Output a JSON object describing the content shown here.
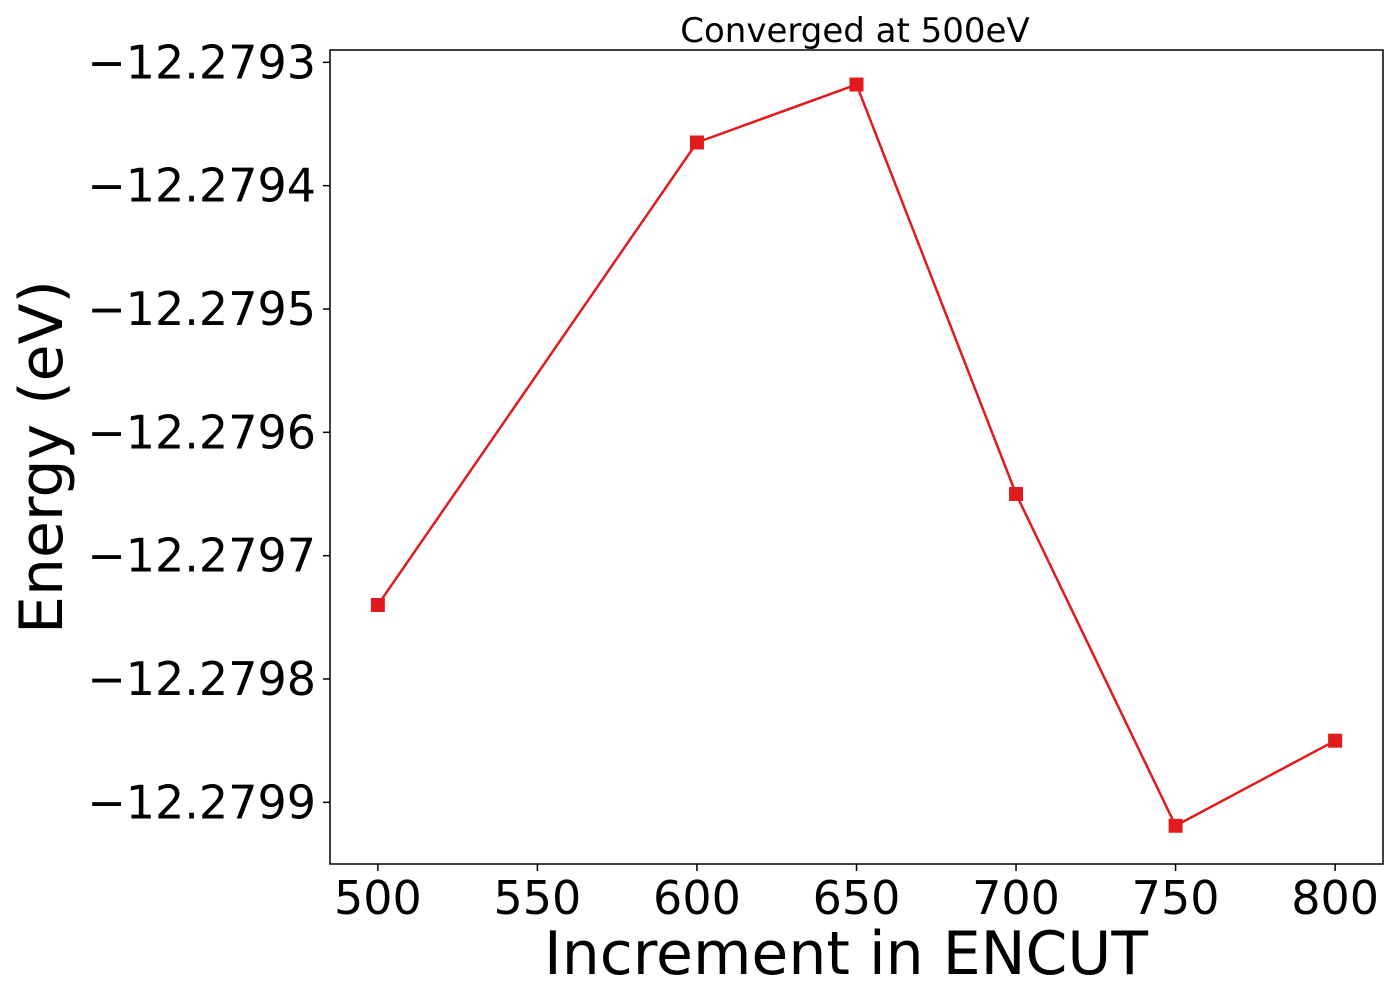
{
  "chart_data": {
    "type": "line",
    "title": "Converged at 500eV",
    "xlabel": "Increment in ENCUT",
    "ylabel": "Energy (eV)",
    "x": [
      500,
      600,
      650,
      700,
      750,
      800
    ],
    "series": [
      {
        "values": [
          -12.27974,
          -12.279365,
          -12.279318,
          -12.27965,
          -12.279919,
          -12.27985
        ],
        "color": "#e31a1c",
        "marker": "square"
      }
    ],
    "xticks": [
      500,
      550,
      600,
      650,
      700,
      750,
      800
    ],
    "xtick_labels": [
      "500",
      "550",
      "600",
      "650",
      "700",
      "750",
      "800"
    ],
    "yticks": [
      -12.2793,
      -12.2794,
      -12.2795,
      -12.2796,
      -12.2797,
      -12.2798,
      -12.2799
    ],
    "ytick_labels": [
      "−12.2793",
      "−12.2794",
      "−12.2795",
      "−12.2796",
      "−12.2797",
      "−12.2798",
      "−12.2799"
    ],
    "xlim": [
      485,
      815
    ],
    "ylim": [
      -12.27995,
      -12.27929
    ],
    "grid": false,
    "legend": false
  }
}
